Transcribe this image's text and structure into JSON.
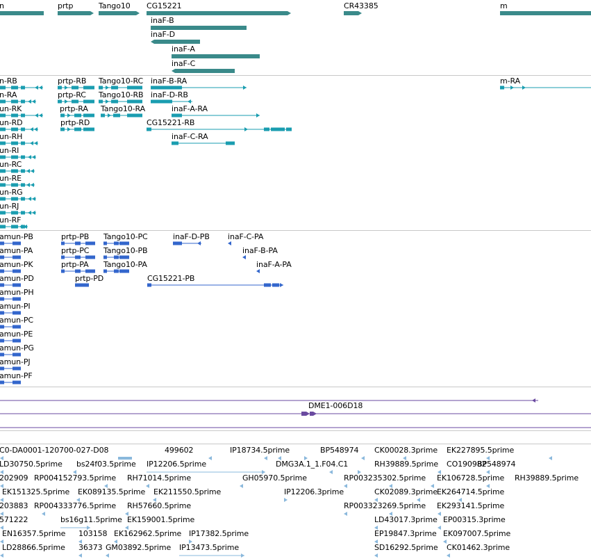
{
  "genes": {
    "labels": [
      "n",
      "prtp",
      "Tango10",
      "CG15221",
      "CR43385",
      "m",
      "inaF-B",
      "inaF-D",
      "inaF-A",
      "inaF-C"
    ]
  },
  "transcripts": {
    "labels": [
      "n-RB",
      "prtp-RB",
      "Tango10-RC",
      "inaF-B-RA",
      "m-RA",
      "n-RA",
      "prtp-RC",
      "Tango10-RB",
      "inaF-D-RB",
      "un-RK",
      "prtp-RA",
      "Tango10-RA",
      "inaF-A-RA",
      "un-RD",
      "prtp-RD",
      "CG15221-RB",
      "un-RH",
      "inaF-C-RA",
      "un-RI",
      "un-RC",
      "un-RE",
      "un-RG",
      "un-RJ",
      "un-RF"
    ]
  },
  "proteins": {
    "labels": [
      "amun-PB",
      "prtp-PB",
      "Tango10-PC",
      "inaF-D-PB",
      "inaF-C-PA",
      "amun-PA",
      "prtp-PC",
      "Tango10-PB",
      "inaF-B-PA",
      "amun-PK",
      "prtp-PA",
      "Tango10-PA",
      "inaF-A-PA",
      "amun-PD",
      "prtp-PD",
      "CG15221-PB",
      "amun-PH",
      "amun-PI",
      "amun-PC",
      "amun-PE",
      "amun-PG",
      "amun-PJ",
      "amun-PF"
    ]
  },
  "clones": {
    "labels": [
      "DME1-006D18"
    ]
  },
  "ests": {
    "labels": [
      "C0-DA0001-120700-027-D08",
      "499602",
      "IP18734.5prime",
      "BP548974",
      "CK00028.3prime",
      "EK227895.5prime",
      "LD30750.5prime",
      "bs24f03.5prime",
      "IP12206.5prime",
      "DMG3A.1_1.F04.C1",
      "RH39889.5prime",
      "CO190982",
      "BP548974",
      "202909",
      "RP004152793.5prime",
      "RH71014.5prime",
      "GH05970.5prime",
      "RP003235302.5prime",
      "EK106728.5prime",
      "RH39889.5prime",
      "EK151325.5prime",
      "EK089135.5prime",
      "EK211550.5prime",
      "IP12206.3prime",
      "CK02089.3prime",
      "EK264714.5prime",
      "203883",
      "RP004333776.5prime",
      "RH57660.5prime",
      "RP003323269.5prime",
      "EK293141.5prime",
      "571222",
      "bs16g11.5prime",
      "EK159001.5prime",
      "LD43017.3prime",
      "EP00315.3prime",
      "EN16357.5prime",
      "103158",
      "EK162962.5prime",
      "IP17382.5prime",
      "EP19847.3prime",
      "EK097007.5prime",
      "LD28866.5prime",
      "36373",
      "GM03892.5prime",
      "IP13473.5prime",
      "SD16292.5prime",
      "CK01462.3prime"
    ]
  },
  "colors": {
    "gene": "#3a8a8a",
    "transcript": "#1a9db0",
    "protein": "#3366cc",
    "clone": "#6a4aa0",
    "est": "#8ab8dc",
    "separator": "#c8c8c8"
  }
}
